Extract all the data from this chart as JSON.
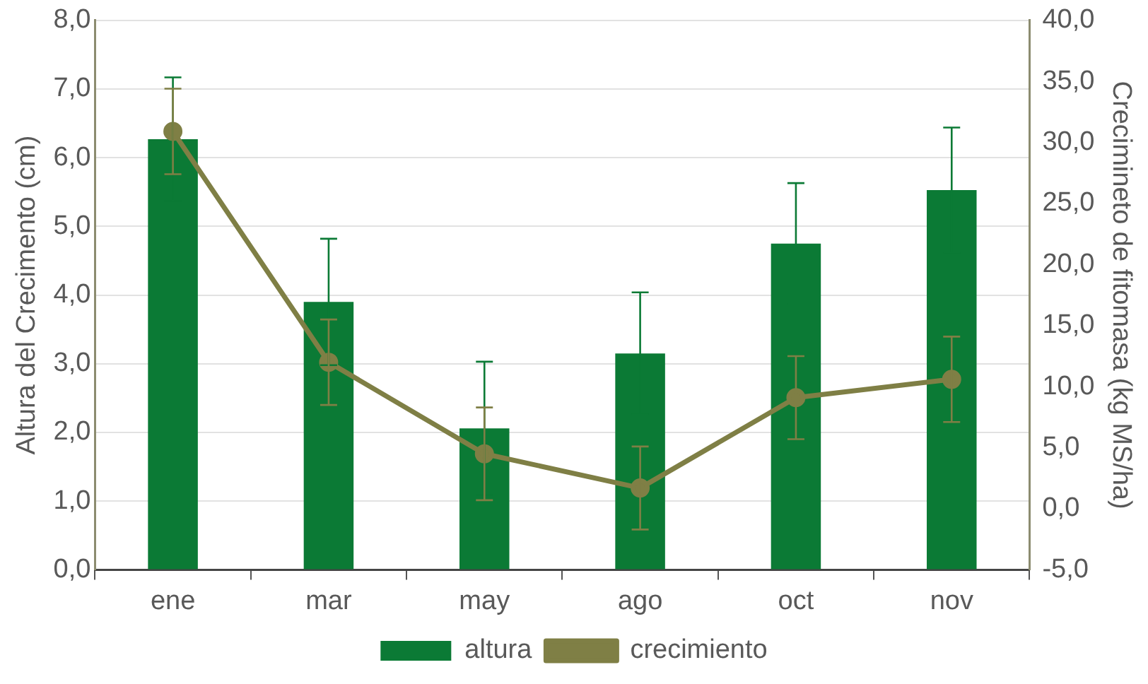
{
  "chart_data": {
    "type": "bar",
    "ylabel": "Altura del Crecimento (cm)",
    "y2label": "Crecimineto de fitomasa (kg MS/ha)",
    "categories": [
      "ene",
      "mar",
      "may",
      "ago",
      "oct",
      "nov"
    ],
    "series": [
      {
        "name": "altura",
        "color": "#0b7a35",
        "values": [
          6.27,
          3.9,
          2.06,
          3.15,
          4.75,
          5.53
        ],
        "errors": [
          0.9,
          0.92,
          0.97,
          0.89,
          0.88,
          0.91
        ]
      },
      {
        "name": "crecimiento",
        "type": "line",
        "axis": "y2",
        "color": "#7f7f45",
        "marker": "circle",
        "values": [
          30.9,
          12.0,
          4.5,
          1.7,
          9.1,
          10.6
        ],
        "errors": [
          3.5,
          3.5,
          3.8,
          3.4,
          3.4,
          3.5
        ]
      }
    ],
    "ylim": [
      0,
      8
    ],
    "yticks": [
      {
        "value": 0,
        "label": "0,0"
      },
      {
        "value": 1,
        "label": "1,0"
      },
      {
        "value": 2,
        "label": "2,0"
      },
      {
        "value": 3,
        "label": "3,0"
      },
      {
        "value": 4,
        "label": "4,0"
      },
      {
        "value": 5,
        "label": "5,0"
      },
      {
        "value": 6,
        "label": "6,0"
      },
      {
        "value": 7,
        "label": "7,0"
      },
      {
        "value": 8,
        "label": "8,0"
      }
    ],
    "y2lim": [
      -5,
      40
    ],
    "y2ticks": [
      {
        "value": -5,
        "label": "-5,0"
      },
      {
        "value": 0,
        "label": "0,0"
      },
      {
        "value": 5,
        "label": "5,0"
      },
      {
        "value": 10,
        "label": "10,0"
      },
      {
        "value": 15,
        "label": "15,0"
      },
      {
        "value": 20,
        "label": "20,0"
      },
      {
        "value": 25,
        "label": "25,0"
      },
      {
        "value": 30,
        "label": "30,0"
      },
      {
        "value": 35,
        "label": "35,0"
      },
      {
        "value": 40,
        "label": "40,0"
      }
    ],
    "grid": "y",
    "legend": "bottom"
  }
}
